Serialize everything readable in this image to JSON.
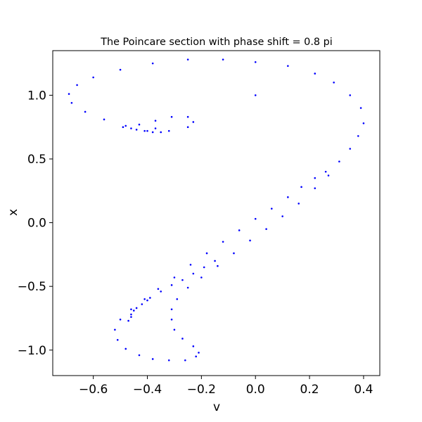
{
  "chart_data": {
    "type": "scatter",
    "title": "The Poincare section with phase shift = 0.8 pi",
    "xlabel": "v",
    "ylabel": "x",
    "xlim": [
      -0.75,
      0.46
    ],
    "ylim": [
      -1.2,
      1.35
    ],
    "xticks": [
      -0.6,
      -0.4,
      -0.2,
      0.0,
      0.2,
      0.4
    ],
    "xtick_labels": [
      "−0.6",
      "−0.4",
      "−0.2",
      "0.0",
      "0.2",
      "0.4"
    ],
    "yticks": [
      -1.0,
      -0.5,
      0.0,
      0.5,
      1.0
    ],
    "ytick_labels": [
      "−1.0",
      "−0.5",
      "0.0",
      "0.5",
      "1.0"
    ],
    "grid": false,
    "marker_color": "#0000ff",
    "series": [
      {
        "points": [
          [
            0.26,
            0.4
          ],
          [
            0.22,
            0.35
          ],
          [
            0.17,
            0.28
          ],
          [
            0.12,
            0.2
          ],
          [
            0.06,
            0.11
          ],
          [
            0.0,
            0.03
          ],
          [
            -0.06,
            -0.06
          ],
          [
            -0.12,
            -0.15
          ],
          [
            -0.18,
            -0.24
          ],
          [
            -0.24,
            -0.33
          ],
          [
            -0.3,
            -0.43
          ],
          [
            -0.36,
            -0.52
          ],
          [
            -0.41,
            -0.6
          ],
          [
            -0.46,
            -0.68
          ],
          [
            -0.5,
            -0.76
          ],
          [
            -0.52,
            -0.84
          ],
          [
            -0.51,
            -0.92
          ],
          [
            -0.48,
            -0.99
          ],
          [
            -0.43,
            -1.04
          ],
          [
            -0.38,
            -1.07
          ],
          [
            -0.32,
            -1.08
          ],
          [
            -0.26,
            -1.08
          ],
          [
            -0.22,
            -1.05
          ],
          [
            -0.21,
            -1.02
          ],
          [
            -0.23,
            -0.97
          ],
          [
            -0.27,
            -0.91
          ],
          [
            -0.3,
            -0.84
          ],
          [
            -0.31,
            -0.76
          ],
          [
            -0.31,
            -0.68
          ],
          [
            -0.29,
            -0.6
          ],
          [
            -0.25,
            -0.51
          ],
          [
            -0.2,
            -0.43
          ],
          [
            -0.14,
            -0.34
          ],
          [
            -0.08,
            -0.24
          ],
          [
            -0.02,
            -0.14
          ],
          [
            0.04,
            -0.05
          ],
          [
            0.1,
            0.05
          ],
          [
            0.16,
            0.15
          ],
          [
            0.22,
            0.27
          ],
          [
            0.27,
            0.37
          ],
          [
            0.31,
            0.48
          ],
          [
            0.35,
            0.58
          ],
          [
            0.38,
            0.68
          ],
          [
            0.4,
            0.78
          ],
          [
            0.39,
            0.9
          ],
          [
            0.35,
            1.0
          ],
          [
            0.29,
            1.1
          ],
          [
            0.22,
            1.17
          ],
          [
            0.12,
            1.23
          ],
          [
            0.0,
            1.26
          ],
          [
            -0.12,
            1.28
          ],
          [
            -0.25,
            1.28
          ],
          [
            -0.38,
            1.25
          ],
          [
            -0.5,
            1.2
          ],
          [
            -0.6,
            1.14
          ],
          [
            -0.66,
            1.08
          ],
          [
            -0.69,
            1.01
          ],
          [
            -0.68,
            0.94
          ],
          [
            -0.63,
            0.87
          ],
          [
            -0.56,
            0.81
          ],
          [
            -0.48,
            0.76
          ],
          [
            -0.4,
            0.72
          ],
          [
            -0.32,
            0.72
          ],
          [
            -0.25,
            0.75
          ],
          [
            -0.23,
            0.79
          ],
          [
            -0.25,
            0.83
          ],
          [
            -0.31,
            0.83
          ],
          [
            -0.37,
            0.8
          ],
          [
            -0.43,
            0.77
          ],
          [
            -0.49,
            0.75
          ],
          [
            -0.15,
            -0.3
          ],
          [
            -0.19,
            -0.35
          ],
          [
            -0.23,
            -0.4
          ],
          [
            -0.27,
            -0.45
          ],
          [
            -0.31,
            -0.49
          ],
          [
            -0.35,
            -0.54
          ],
          [
            -0.39,
            -0.59
          ],
          [
            -0.42,
            -0.64
          ],
          [
            -0.45,
            -0.69
          ],
          [
            -0.46,
            -0.74
          ],
          [
            -0.47,
            -0.77
          ],
          [
            -0.46,
            -0.72
          ],
          [
            -0.44,
            -0.67
          ],
          [
            -0.4,
            -0.61
          ],
          [
            -0.35,
            0.71
          ],
          [
            -0.38,
            0.71
          ],
          [
            -0.41,
            0.72
          ],
          [
            -0.44,
            0.73
          ],
          [
            -0.46,
            0.74
          ],
          [
            0.0,
            1.0
          ],
          [
            -0.37,
            0.74
          ]
        ]
      }
    ]
  }
}
